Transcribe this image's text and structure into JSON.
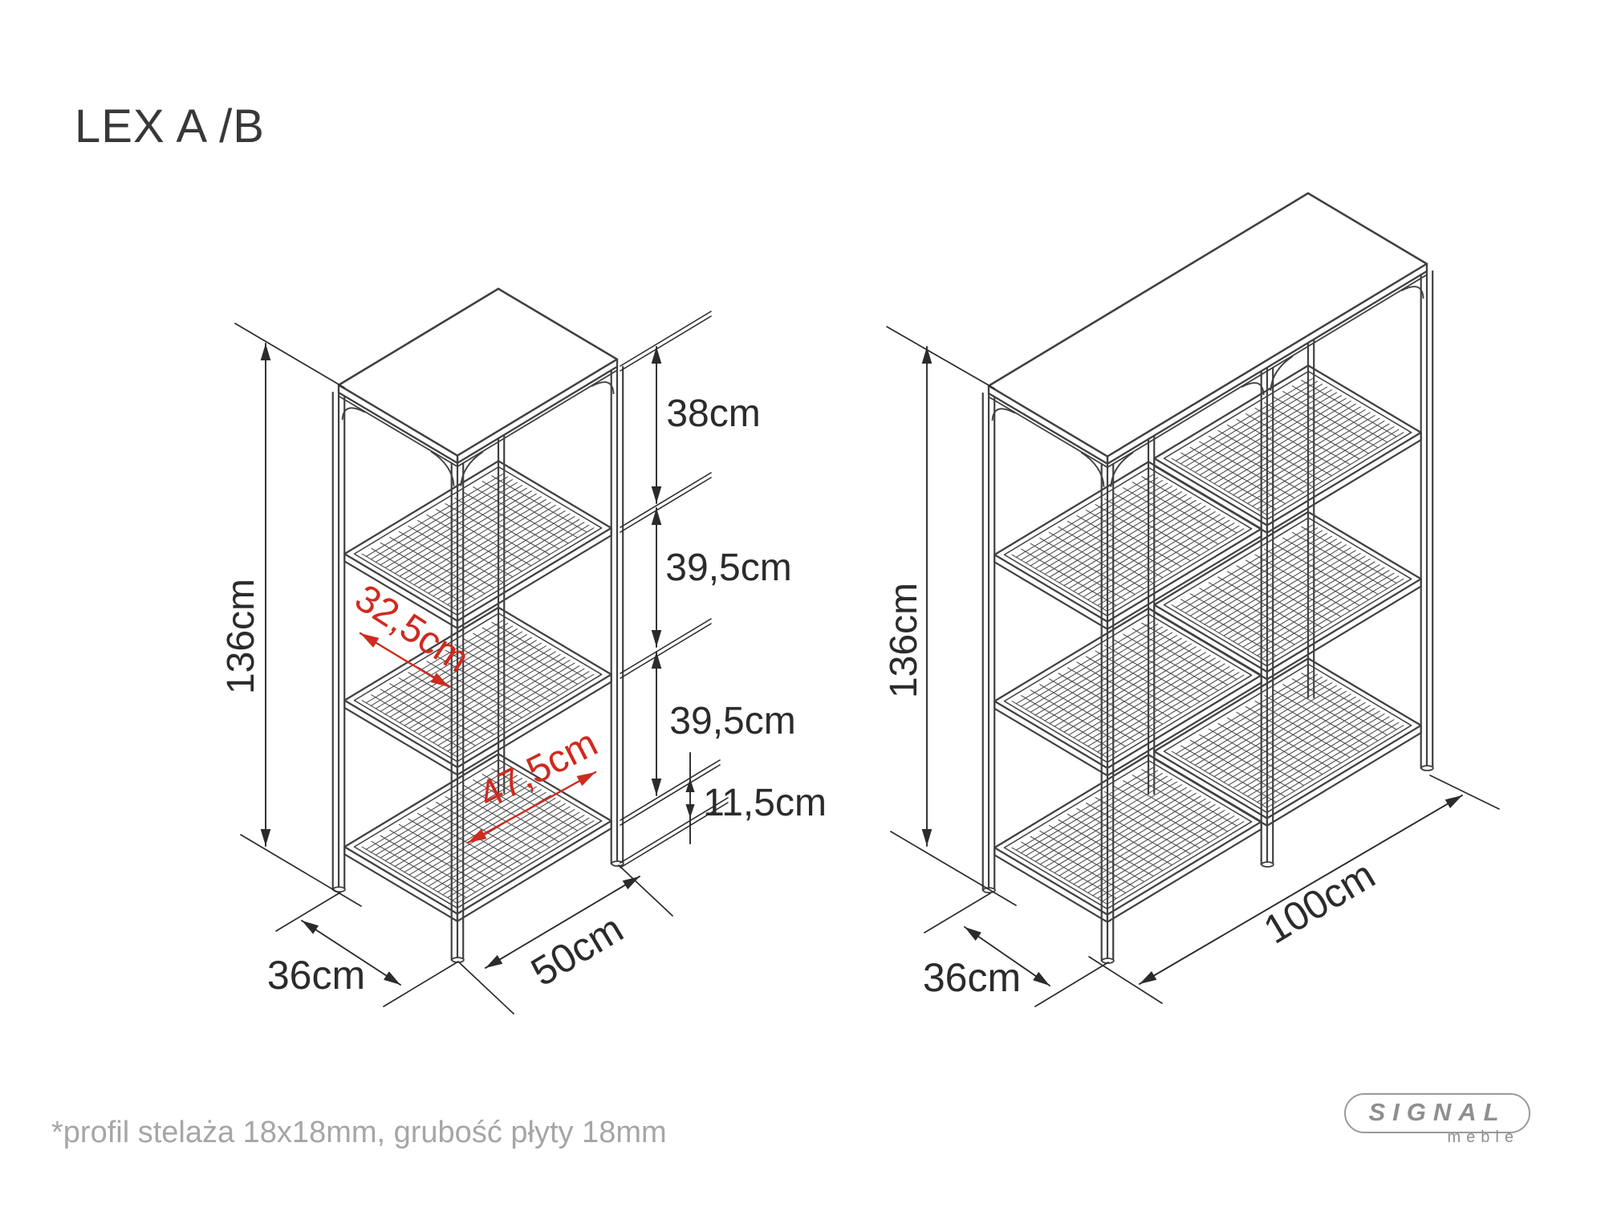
{
  "title": "LEX A /B",
  "footnote": "*profil stelaża 18x18mm, grubość płyty 18mm",
  "logo": {
    "brand": "SIGNAL",
    "sub": "meble"
  },
  "units": {
    "left": {
      "height": "136cm",
      "depth": "36cm",
      "width": "50cm",
      "spacing_top": "38cm",
      "spacing_upper": "39,5cm",
      "spacing_lower": "39,5cm",
      "clearance_bottom": "11,5cm",
      "shelf_inner_depth": "32,5cm",
      "shelf_inner_width": "47,5cm"
    },
    "right": {
      "height": "136cm",
      "depth": "36cm",
      "width": "100cm"
    }
  },
  "colors": {
    "drawing_line": "#414141",
    "mesh_line": "#4a4a4a",
    "dimension": "#2b2b2b",
    "accent_red": "#cf2a1e",
    "muted_text": "#a6a6a6",
    "logo_gray": "#8f8f8f"
  }
}
